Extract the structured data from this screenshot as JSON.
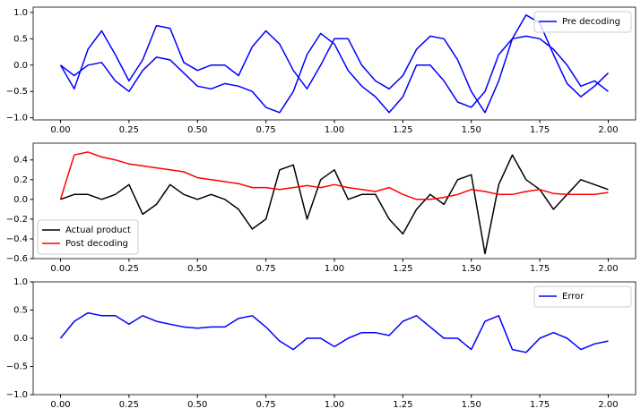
{
  "chart_data": [
    {
      "type": "line",
      "x": [
        0,
        0.05,
        0.1,
        0.15,
        0.2,
        0.25,
        0.3,
        0.35,
        0.4,
        0.45,
        0.5,
        0.55,
        0.6,
        0.65,
        0.7,
        0.75,
        0.8,
        0.85,
        0.9,
        0.95,
        1,
        1.05,
        1.1,
        1.15,
        1.2,
        1.25,
        1.3,
        1.35,
        1.4,
        1.45,
        1.5,
        1.55,
        1.6,
        1.65,
        1.7,
        1.75,
        1.8,
        1.85,
        1.9,
        1.95,
        2
      ],
      "series": [
        {
          "name": "Pre decoding",
          "color": "#0000ff",
          "values": [
            0,
            -0.45,
            0.3,
            0.65,
            0.2,
            -0.3,
            0.1,
            0.75,
            0.7,
            0.05,
            -0.1,
            0,
            0,
            -0.2,
            0.35,
            0.65,
            0.4,
            -0.1,
            -0.45,
            0,
            0.5,
            0.5,
            0,
            -0.3,
            -0.45,
            -0.2,
            0.3,
            0.55,
            0.5,
            0.1,
            -0.5,
            -0.9,
            -0.3,
            0.5,
            0.95,
            0.8,
            0.2,
            -0.35,
            -0.6,
            -0.4,
            -0.15
          ]
        },
        {
          "name": null,
          "color": "#0000ff",
          "values": [
            0,
            -0.2,
            0,
            0.05,
            -0.3,
            -0.5,
            -0.1,
            0.15,
            0.1,
            -0.15,
            -0.4,
            -0.45,
            -0.35,
            -0.4,
            -0.5,
            -0.8,
            -0.9,
            -0.5,
            0.2,
            0.6,
            0.4,
            -0.1,
            -0.4,
            -0.6,
            -0.9,
            -0.6,
            0,
            0,
            -0.3,
            -0.7,
            -0.8,
            -0.5,
            0.2,
            0.5,
            0.55,
            0.5,
            0.3,
            0,
            -0.4,
            -0.3,
            -0.5
          ]
        }
      ],
      "xlim": [
        -0.1,
        2.1
      ],
      "xticks": [
        {
          "value": 0,
          "label": "0.00"
        },
        {
          "value": 0.25,
          "label": "0.25"
        },
        {
          "value": 0.5,
          "label": "0.50"
        },
        {
          "value": 0.75,
          "label": "0.75"
        },
        {
          "value": 1,
          "label": "1.00"
        },
        {
          "value": 1.25,
          "label": "1.25"
        },
        {
          "value": 1.5,
          "label": "1.50"
        },
        {
          "value": 1.75,
          "label": "1.75"
        },
        {
          "value": 2,
          "label": "2.00"
        }
      ],
      "ylim": [
        -1.04,
        1.1
      ],
      "yticks": [
        {
          "value": -1,
          "label": "−1.0"
        },
        {
          "value": -0.5,
          "label": "−0.5"
        },
        {
          "value": 0,
          "label": "0.0"
        },
        {
          "value": 0.5,
          "label": "0.5"
        },
        {
          "value": 1,
          "label": "1.0"
        }
      ],
      "grid": false,
      "legend": "upper right"
    },
    {
      "type": "line",
      "x": [
        0,
        0.05,
        0.1,
        0.15,
        0.2,
        0.25,
        0.3,
        0.35,
        0.4,
        0.45,
        0.5,
        0.55,
        0.6,
        0.65,
        0.7,
        0.75,
        0.8,
        0.85,
        0.9,
        0.95,
        1,
        1.05,
        1.1,
        1.15,
        1.2,
        1.25,
        1.3,
        1.35,
        1.4,
        1.45,
        1.5,
        1.55,
        1.6,
        1.65,
        1.7,
        1.75,
        1.8,
        1.85,
        1.9,
        1.95,
        2
      ],
      "series": [
        {
          "name": "Actual product",
          "color": "#000000",
          "values": [
            0,
            0.05,
            0.05,
            0,
            0.05,
            0.15,
            -0.15,
            -0.05,
            0.15,
            0.05,
            0,
            0.05,
            0,
            -0.1,
            -0.3,
            -0.2,
            0.3,
            0.35,
            -0.2,
            0.2,
            0.3,
            0,
            0.05,
            0.05,
            -0.2,
            -0.35,
            -0.1,
            0.05,
            -0.05,
            0.2,
            0.25,
            -0.55,
            0.15,
            0.45,
            0.2,
            0.1,
            -0.1,
            0.05,
            0.2,
            0.15,
            0.1
          ]
        },
        {
          "name": "Post decoding",
          "color": "#ff0000",
          "values": [
            0,
            0.45,
            0.48,
            0.43,
            0.4,
            0.36,
            0.34,
            0.32,
            0.3,
            0.28,
            0.22,
            0.2,
            0.18,
            0.16,
            0.12,
            0.12,
            0.1,
            0.12,
            0.14,
            0.12,
            0.15,
            0.12,
            0.1,
            0.08,
            0.12,
            0.05,
            0,
            0,
            0.02,
            0.05,
            0.1,
            0.08,
            0.05,
            0.05,
            0.08,
            0.1,
            0.06,
            0.05,
            0.05,
            0.05,
            0.07
          ]
        }
      ],
      "xlim": [
        -0.1,
        2.1
      ],
      "xticks": [
        {
          "value": 0,
          "label": "0.00"
        },
        {
          "value": 0.25,
          "label": "0.25"
        },
        {
          "value": 0.5,
          "label": "0.50"
        },
        {
          "value": 0.75,
          "label": "0.75"
        },
        {
          "value": 1,
          "label": "1.00"
        },
        {
          "value": 1.25,
          "label": "1.25"
        },
        {
          "value": 1.5,
          "label": "1.50"
        },
        {
          "value": 1.75,
          "label": "1.75"
        },
        {
          "value": 2,
          "label": "2.00"
        }
      ],
      "ylim": [
        -0.6,
        0.57
      ],
      "yticks": [
        {
          "value": -0.6,
          "label": "−0.6"
        },
        {
          "value": -0.4,
          "label": "−0.4"
        },
        {
          "value": -0.2,
          "label": "−0.2"
        },
        {
          "value": 0,
          "label": "0.0"
        },
        {
          "value": 0.2,
          "label": "0.2"
        },
        {
          "value": 0.4,
          "label": "0.4"
        }
      ],
      "grid": false,
      "legend": "lower left"
    },
    {
      "type": "line",
      "x": [
        0,
        0.05,
        0.1,
        0.15,
        0.2,
        0.25,
        0.3,
        0.35,
        0.4,
        0.45,
        0.5,
        0.55,
        0.6,
        0.65,
        0.7,
        0.75,
        0.8,
        0.85,
        0.9,
        0.95,
        1,
        1.05,
        1.1,
        1.15,
        1.2,
        1.25,
        1.3,
        1.35,
        1.4,
        1.45,
        1.5,
        1.55,
        1.6,
        1.65,
        1.7,
        1.75,
        1.8,
        1.85,
        1.9,
        1.95,
        2
      ],
      "series": [
        {
          "name": "Error",
          "color": "#0000ff",
          "values": [
            0,
            0.3,
            0.45,
            0.4,
            0.4,
            0.25,
            0.4,
            0.3,
            0.25,
            0.2,
            0.18,
            0.2,
            0.2,
            0.35,
            0.4,
            0.2,
            -0.05,
            -0.2,
            0,
            0,
            -0.15,
            0,
            0.1,
            0.1,
            0.05,
            0.3,
            0.4,
            0.2,
            0,
            0,
            -0.2,
            0.3,
            0.4,
            -0.2,
            -0.25,
            0,
            0.1,
            0,
            -0.2,
            -0.1,
            -0.05
          ]
        }
      ],
      "xlim": [
        -0.1,
        2.1
      ],
      "xticks": [
        {
          "value": 0,
          "label": "0.00"
        },
        {
          "value": 0.25,
          "label": "0.25"
        },
        {
          "value": 0.5,
          "label": "0.50"
        },
        {
          "value": 0.75,
          "label": "0.75"
        },
        {
          "value": 1,
          "label": "1.00"
        },
        {
          "value": 1.25,
          "label": "1.25"
        },
        {
          "value": 1.5,
          "label": "1.50"
        },
        {
          "value": 1.75,
          "label": "1.75"
        },
        {
          "value": 2,
          "label": "2.00"
        }
      ],
      "ylim": [
        -1,
        1
      ],
      "yticks": [
        {
          "value": -1,
          "label": "−1.0"
        },
        {
          "value": -0.5,
          "label": "−0.5"
        },
        {
          "value": 0,
          "label": "0.0"
        },
        {
          "value": 0.5,
          "label": "0.5"
        },
        {
          "value": 1,
          "label": "1.0"
        }
      ],
      "grid": false,
      "legend": "upper right"
    }
  ]
}
